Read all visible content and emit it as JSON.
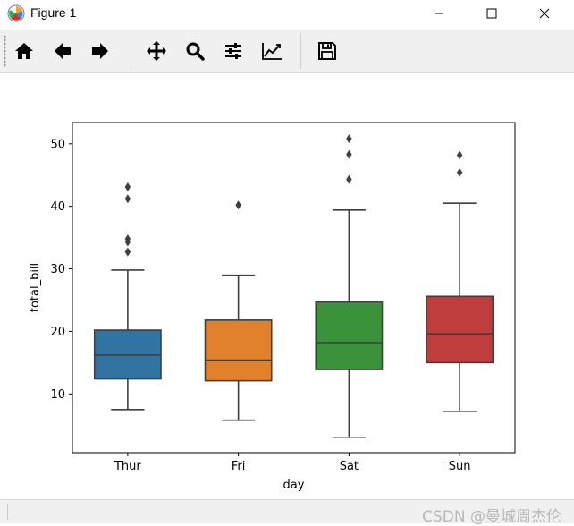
{
  "window": {
    "title": "Figure 1",
    "controls": [
      "minimize",
      "maximize",
      "close"
    ]
  },
  "toolbar": {
    "buttons": [
      {
        "icon": "home-icon",
        "label": "Home"
      },
      {
        "icon": "back-arrow-icon",
        "label": "Back"
      },
      {
        "icon": "forward-arrow-icon",
        "label": "Forward"
      },
      {
        "icon": "pan-icon",
        "label": "Pan"
      },
      {
        "icon": "zoom-icon",
        "label": "Zoom"
      },
      {
        "icon": "subplots-icon",
        "label": "Configure subplots"
      },
      {
        "icon": "axes-edit-icon",
        "label": "Edit axis"
      },
      {
        "icon": "save-icon",
        "label": "Save"
      }
    ]
  },
  "chart_data": {
    "type": "box",
    "xlabel": "day",
    "ylabel": "total_bill",
    "ylim": [
      0.6,
      53.4
    ],
    "yticks": [
      10,
      20,
      30,
      40,
      50
    ],
    "categories": [
      "Thur",
      "Fri",
      "Sat",
      "Sun"
    ],
    "boxes": [
      {
        "category": "Thur",
        "color": "#3274a1",
        "whisker_low": 7.5,
        "q1": 12.4,
        "median": 16.2,
        "q3": 20.2,
        "whisker_high": 29.8,
        "outliers": [
          32.7,
          34.3,
          34.8,
          41.2,
          43.1
        ]
      },
      {
        "category": "Fri",
        "color": "#e1812c",
        "whisker_low": 5.8,
        "q1": 12.1,
        "median": 15.4,
        "q3": 21.8,
        "whisker_high": 28.97,
        "outliers": [
          40.2
        ]
      },
      {
        "category": "Sat",
        "color": "#3a923a",
        "whisker_low": 3.07,
        "q1": 13.9,
        "median": 18.2,
        "q3": 24.7,
        "whisker_high": 39.4,
        "outliers": [
          44.3,
          48.3,
          50.8
        ]
      },
      {
        "category": "Sun",
        "color": "#c03d3e",
        "whisker_low": 7.2,
        "q1": 15.0,
        "median": 19.6,
        "q3": 25.6,
        "whisker_high": 40.5,
        "outliers": [
          45.4,
          48.2
        ]
      }
    ]
  },
  "watermark": "CSDN @曼城周杰伦"
}
